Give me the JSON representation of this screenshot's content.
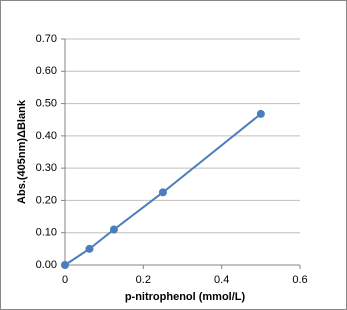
{
  "chart_data": {
    "type": "line",
    "x_label": "p-nitrophenol  (mmol/L)",
    "y_label": "Abs.(405nm)ΔBlank",
    "x": [
      0,
      0.0625,
      0.125,
      0.25,
      0.5
    ],
    "series": [
      {
        "color": "#4a7ebb",
        "values": [
          0,
          0.05,
          0.11,
          0.225,
          0.468
        ]
      }
    ],
    "xlim": [
      0,
      0.6
    ],
    "xticks": [
      0,
      0.2,
      0.4,
      0.6
    ],
    "ylim": [
      0,
      0.7
    ],
    "yticks": [
      {
        "value": 0,
        "label": "0.00"
      },
      {
        "value": 0.1,
        "label": "0.10"
      },
      {
        "value": 0.2,
        "label": "0.20"
      },
      {
        "value": 0.3,
        "label": "0.30"
      },
      {
        "value": 0.4,
        "label": "0.40"
      },
      {
        "value": 0.5,
        "label": "0.50"
      },
      {
        "value": 0.6,
        "label": "0.60"
      },
      {
        "value": 0.7,
        "label": "0.70"
      }
    ],
    "grid": true
  }
}
